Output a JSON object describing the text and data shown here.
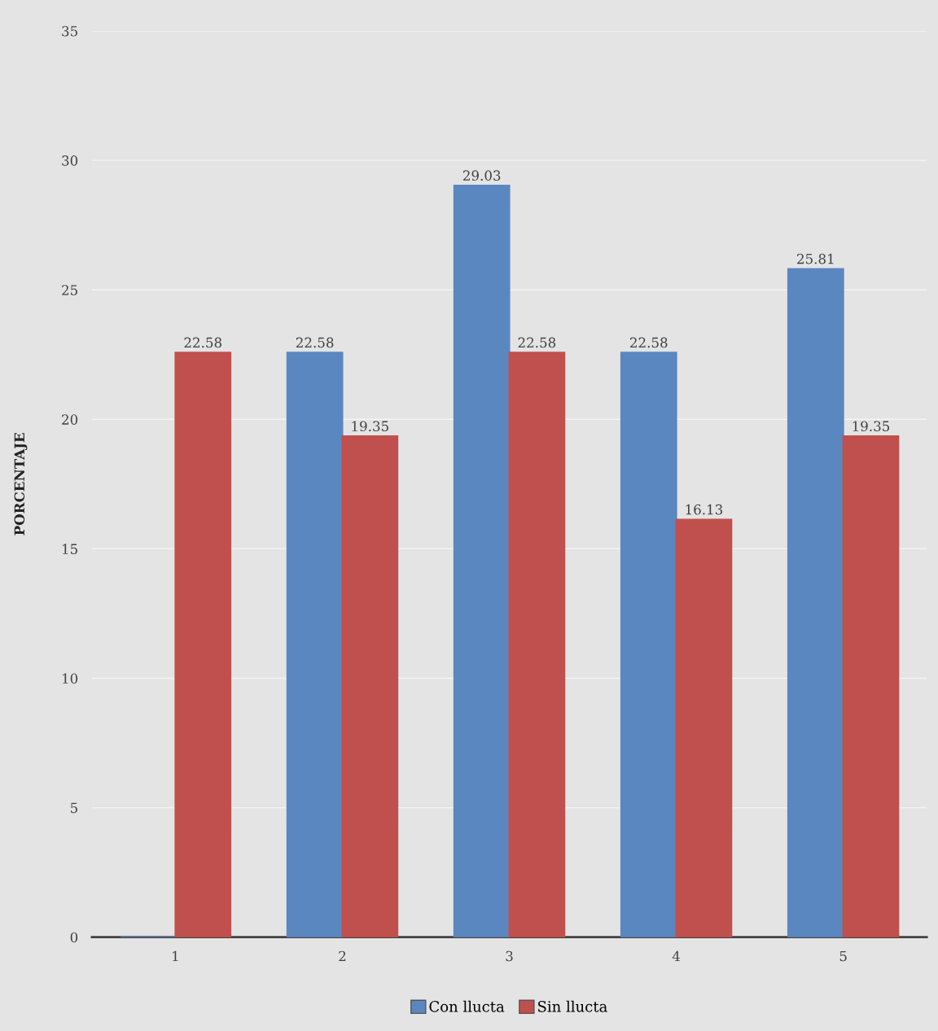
{
  "chart_data": {
    "type": "bar",
    "ylabel": "PORCENTAJE",
    "categories": [
      "1",
      "2",
      "3",
      "4",
      "5"
    ],
    "series": [
      {
        "name": "Con llucta",
        "color": "#5b87c0",
        "values": [
          0,
          22.58,
          29.03,
          22.58,
          25.81
        ],
        "value_labels": [
          null,
          "22.58",
          "29.03",
          "22.58",
          "25.81"
        ]
      },
      {
        "name": "Sin llucta",
        "color": "#c0504d",
        "values": [
          22.58,
          19.35,
          22.58,
          16.13,
          19.35
        ],
        "value_labels": [
          "22.58",
          "19.35",
          "22.58",
          "16.13",
          "19.35"
        ]
      }
    ],
    "ylim": [
      0,
      35
    ],
    "yticks": [
      0,
      5,
      10,
      15,
      20,
      25,
      30,
      35
    ],
    "grid": "y",
    "legend": "bottom"
  }
}
